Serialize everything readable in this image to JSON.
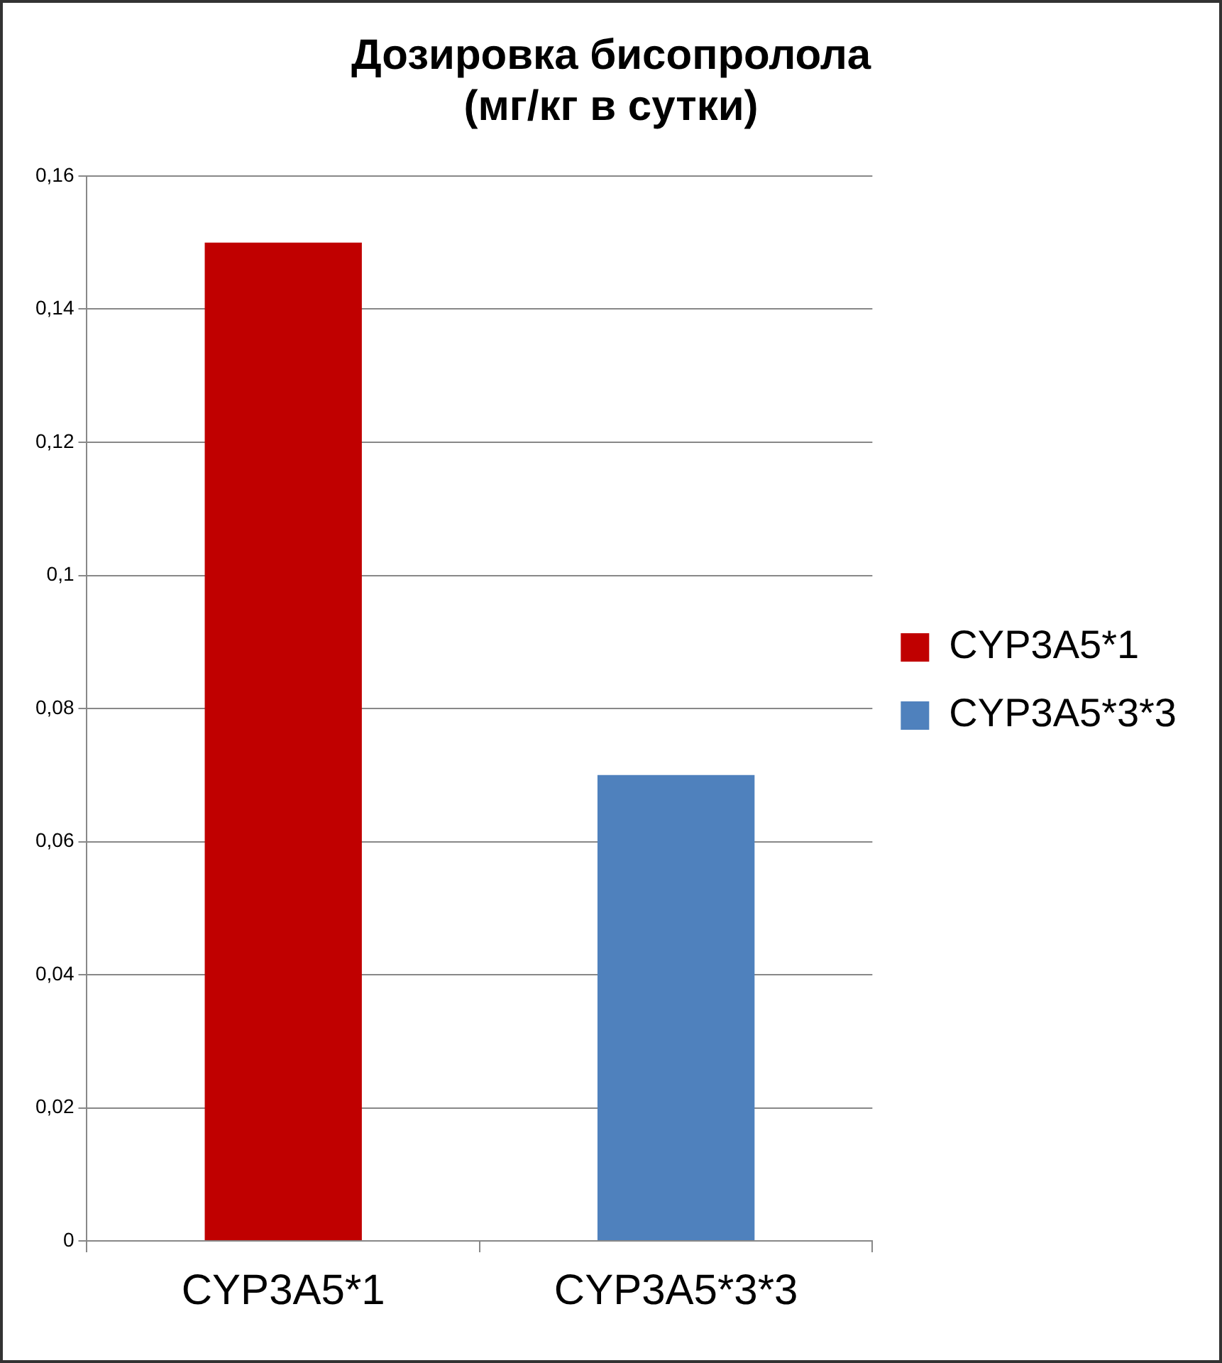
{
  "chart_data": {
    "type": "bar",
    "title": "Дозировка бисопролола\n(мг/кг в сутки)",
    "categories": [
      "CYP3A5*1",
      "CYP3A5*3*3"
    ],
    "series": [
      {
        "name": "CYP3A5*1",
        "color": "#c00000",
        "values": [
          0.15,
          null
        ]
      },
      {
        "name": "CYP3A5*3*3",
        "color": "#4f81bd",
        "values": [
          null,
          0.07
        ]
      }
    ],
    "ylim": [
      0,
      0.16
    ],
    "yticks": [
      0,
      {
        "value": 0.02,
        "label": "0,02"
      },
      {
        "value": 0.04,
        "label": "0,04"
      },
      {
        "value": 0.06,
        "label": "0,06"
      },
      {
        "value": 0.08,
        "label": "0,08"
      },
      {
        "value": 0.1,
        "label": "0,1"
      },
      {
        "value": 0.12,
        "label": "0,12"
      },
      {
        "value": 0.14,
        "label": "0,14"
      },
      {
        "value": 0.16,
        "label": "0,16"
      }
    ],
    "grid": "y",
    "legend": "right"
  }
}
